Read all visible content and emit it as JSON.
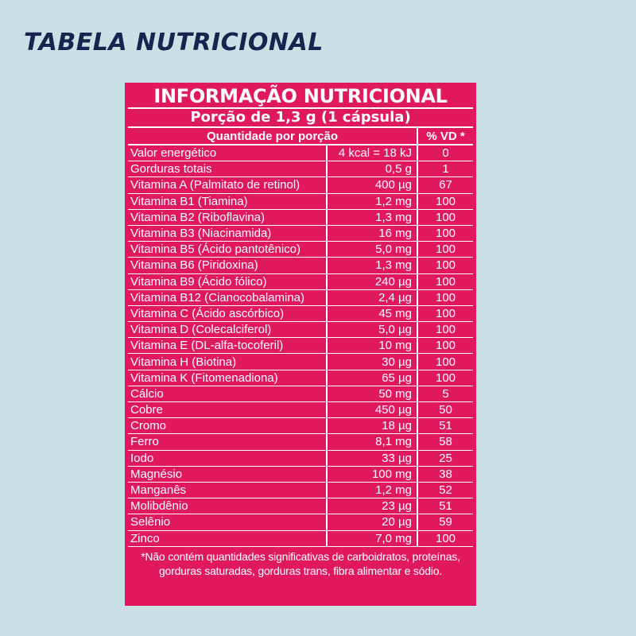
{
  "page": {
    "title": "TABELA NUTRICIONAL"
  },
  "nutrition_table": {
    "heading": "INFORMAÇÃO NUTRICIONAL",
    "portion": "Porção de 1,3 g (1 cápsula)",
    "columns": {
      "quantity": "Quantidade por porção",
      "daily_value": "% VD *"
    },
    "rows": [
      {
        "nutrient": "Valor energético",
        "amount": "4 kcal = 18 kJ",
        "vd": "0"
      },
      {
        "nutrient": "Gorduras totais",
        "amount": "0,5 g",
        "vd": "1"
      },
      {
        "nutrient": "Vitamina A (Palmitato de retinol)",
        "amount": "400 µg",
        "vd": "67"
      },
      {
        "nutrient": "Vitamina B1 (Tiamina)",
        "amount": "1,2 mg",
        "vd": "100"
      },
      {
        "nutrient": "Vitamina B2 (Riboflavina)",
        "amount": "1,3 mg",
        "vd": "100"
      },
      {
        "nutrient": "Vitamina B3 (Niacinamida)",
        "amount": "16 mg",
        "vd": "100"
      },
      {
        "nutrient": "Vitamina B5 (Ácido pantotênico)",
        "amount": "5,0 mg",
        "vd": "100"
      },
      {
        "nutrient": "Vitamina B6 (Piridoxina)",
        "amount": "1,3 mg",
        "vd": "100"
      },
      {
        "nutrient": "Vitamina B9 (Ácido fólico)",
        "amount": "240 µg",
        "vd": "100"
      },
      {
        "nutrient": "Vitamina B12 (Cianocobalamina)",
        "amount": "2,4 µg",
        "vd": "100"
      },
      {
        "nutrient": "Vitamina C (Ácido ascórbico)",
        "amount": "45 mg",
        "vd": "100"
      },
      {
        "nutrient": "Vitamina D (Colecalciferol)",
        "amount": "5,0 µg",
        "vd": "100"
      },
      {
        "nutrient": "Vitamina E (DL-alfa-tocoferil)",
        "amount": "10 mg",
        "vd": "100"
      },
      {
        "nutrient": "Vitamina H (Biotina)",
        "amount": "30 µg",
        "vd": "100"
      },
      {
        "nutrient": "Vitamina K (Fitomenadiona)",
        "amount": "65 µg",
        "vd": "100"
      },
      {
        "nutrient": "Cálcio",
        "amount": "50 mg",
        "vd": "5"
      },
      {
        "nutrient": "Cobre",
        "amount": "450 µg",
        "vd": "50"
      },
      {
        "nutrient": "Cromo",
        "amount": "18 µg",
        "vd": "51"
      },
      {
        "nutrient": "Ferro",
        "amount": "8,1 mg",
        "vd": "58"
      },
      {
        "nutrient": "Iodo",
        "amount": "33 µg",
        "vd": "25"
      },
      {
        "nutrient": "Magnésio",
        "amount": "100 mg",
        "vd": "38"
      },
      {
        "nutrient": "Manganês",
        "amount": "1,2 mg",
        "vd": "52"
      },
      {
        "nutrient": "Molibdênio",
        "amount": "23 µg",
        "vd": "51"
      },
      {
        "nutrient": "Selênio",
        "amount": "20 µg",
        "vd": "59"
      },
      {
        "nutrient": "Zinco",
        "amount": "7,0 mg",
        "vd": "100"
      }
    ],
    "footnote": "*Não contém quantidades significativas de carboidratos, proteínas, gorduras saturadas, gorduras trans, fibra alimentar e sódio."
  },
  "colors": {
    "background": "#c9e1e5",
    "panel": "#e0195e",
    "title": "#16244f",
    "text": "#ffffff"
  }
}
